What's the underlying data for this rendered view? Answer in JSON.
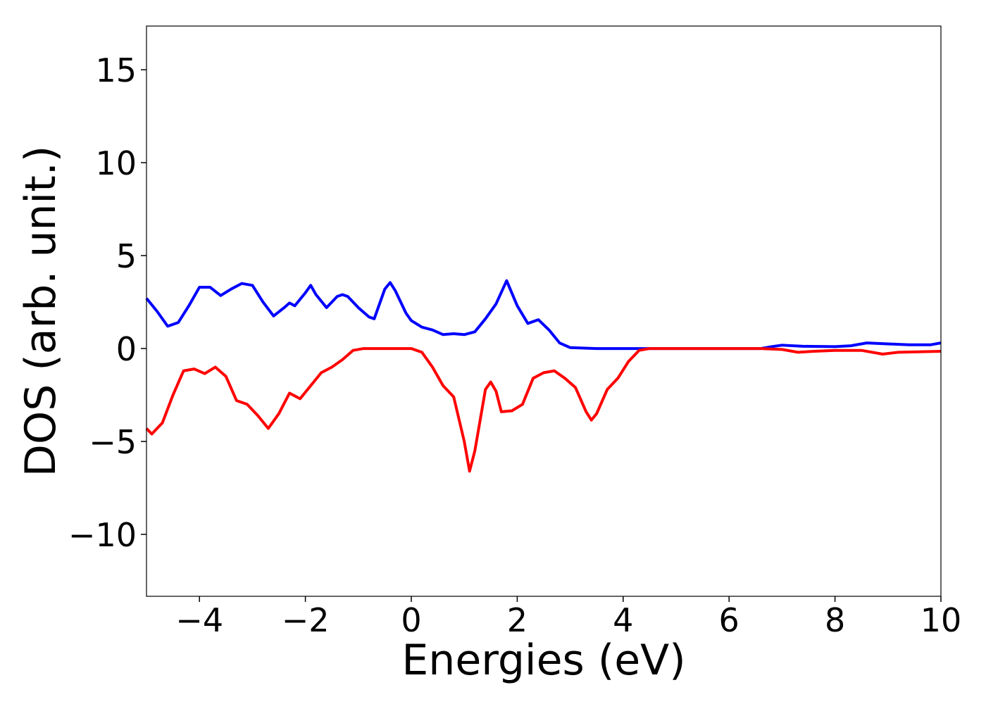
{
  "chart_data": {
    "type": "line",
    "x_label": "Energies (eV)",
    "y_label": "DOS (arb. unit.)",
    "xlim": [
      -5,
      10
    ],
    "ylim": [
      -13.33,
      17.35
    ],
    "xticks": [
      {
        "value": -4,
        "label": "−4"
      },
      {
        "value": -2,
        "label": "−2"
      },
      0,
      2,
      4,
      6,
      8,
      10
    ],
    "yticks": [
      {
        "value": -10,
        "label": "−10"
      },
      {
        "value": -5,
        "label": "−5"
      },
      0,
      5,
      10,
      15
    ],
    "grid": false,
    "series": [
      {
        "color": "#0000ff",
        "x": [
          -5,
          -4.8,
          -4.6,
          -4.4,
          -4.2,
          -4.0,
          -3.8,
          -3.6,
          -3.4,
          -3.2,
          -3.0,
          -2.8,
          -2.6,
          -2.4,
          -2.3,
          -2.2,
          -2.0,
          -1.9,
          -1.8,
          -1.6,
          -1.4,
          -1.3,
          -1.2,
          -1.0,
          -0.8,
          -0.7,
          -0.5,
          -0.4,
          -0.3,
          -0.1,
          0.0,
          0.2,
          0.4,
          0.6,
          0.8,
          1.0,
          1.2,
          1.4,
          1.6,
          1.8,
          2.0,
          2.2,
          2.4,
          2.6,
          2.8,
          3.0,
          3.5,
          4,
          5,
          6,
          6.6,
          6.8,
          7.0,
          7.4,
          8.0,
          8.3,
          8.6,
          9.0,
          9.4,
          9.8,
          10
        ],
        "values": [
          2.7,
          2.0,
          1.2,
          1.4,
          2.3,
          3.3,
          3.3,
          2.85,
          3.2,
          3.5,
          3.4,
          2.5,
          1.75,
          2.2,
          2.45,
          2.3,
          3.0,
          3.4,
          2.9,
          2.2,
          2.8,
          2.9,
          2.8,
          2.2,
          1.7,
          1.6,
          3.2,
          3.55,
          3.1,
          1.9,
          1.5,
          1.15,
          1.0,
          0.75,
          0.8,
          0.75,
          0.9,
          1.6,
          2.4,
          3.65,
          2.3,
          1.35,
          1.55,
          1.0,
          0.3,
          0.05,
          0,
          0,
          0,
          0,
          0,
          0.1,
          0.18,
          0.12,
          0.1,
          0.15,
          0.3,
          0.25,
          0.2,
          0.2,
          0.3
        ]
      },
      {
        "color": "#ff0000",
        "x": [
          -5,
          -4.9,
          -4.7,
          -4.5,
          -4.3,
          -4.1,
          -3.9,
          -3.7,
          -3.5,
          -3.3,
          -3.1,
          -2.9,
          -2.7,
          -2.5,
          -2.3,
          -2.1,
          -1.9,
          -1.7,
          -1.5,
          -1.3,
          -1.1,
          -0.9,
          0,
          0.2,
          0.4,
          0.6,
          0.8,
          1.0,
          1.1,
          1.2,
          1.4,
          1.5,
          1.6,
          1.7,
          1.9,
          2.1,
          2.3,
          2.5,
          2.7,
          2.9,
          3.1,
          3.3,
          3.4,
          3.5,
          3.7,
          3.9,
          4.1,
          4.3,
          4.5,
          6.6,
          7.0,
          7.3,
          7.6,
          8.0,
          8.5,
          8.9,
          9.2,
          10
        ],
        "values": [
          -4.3,
          -4.6,
          -4.0,
          -2.5,
          -1.2,
          -1.1,
          -1.35,
          -1.0,
          -1.5,
          -2.8,
          -3.0,
          -3.6,
          -4.3,
          -3.5,
          -2.4,
          -2.7,
          -2.0,
          -1.3,
          -1.0,
          -0.6,
          -0.1,
          0,
          0,
          -0.2,
          -1.0,
          -2.0,
          -2.6,
          -5.0,
          -6.6,
          -5.5,
          -2.2,
          -1.8,
          -2.3,
          -3.4,
          -3.35,
          -3.0,
          -1.6,
          -1.3,
          -1.2,
          -1.6,
          -2.1,
          -3.4,
          -3.85,
          -3.5,
          -2.2,
          -1.6,
          -0.7,
          -0.1,
          0,
          0,
          -0.05,
          -0.2,
          -0.15,
          -0.1,
          -0.1,
          -0.3,
          -0.2,
          -0.15
        ]
      }
    ]
  }
}
